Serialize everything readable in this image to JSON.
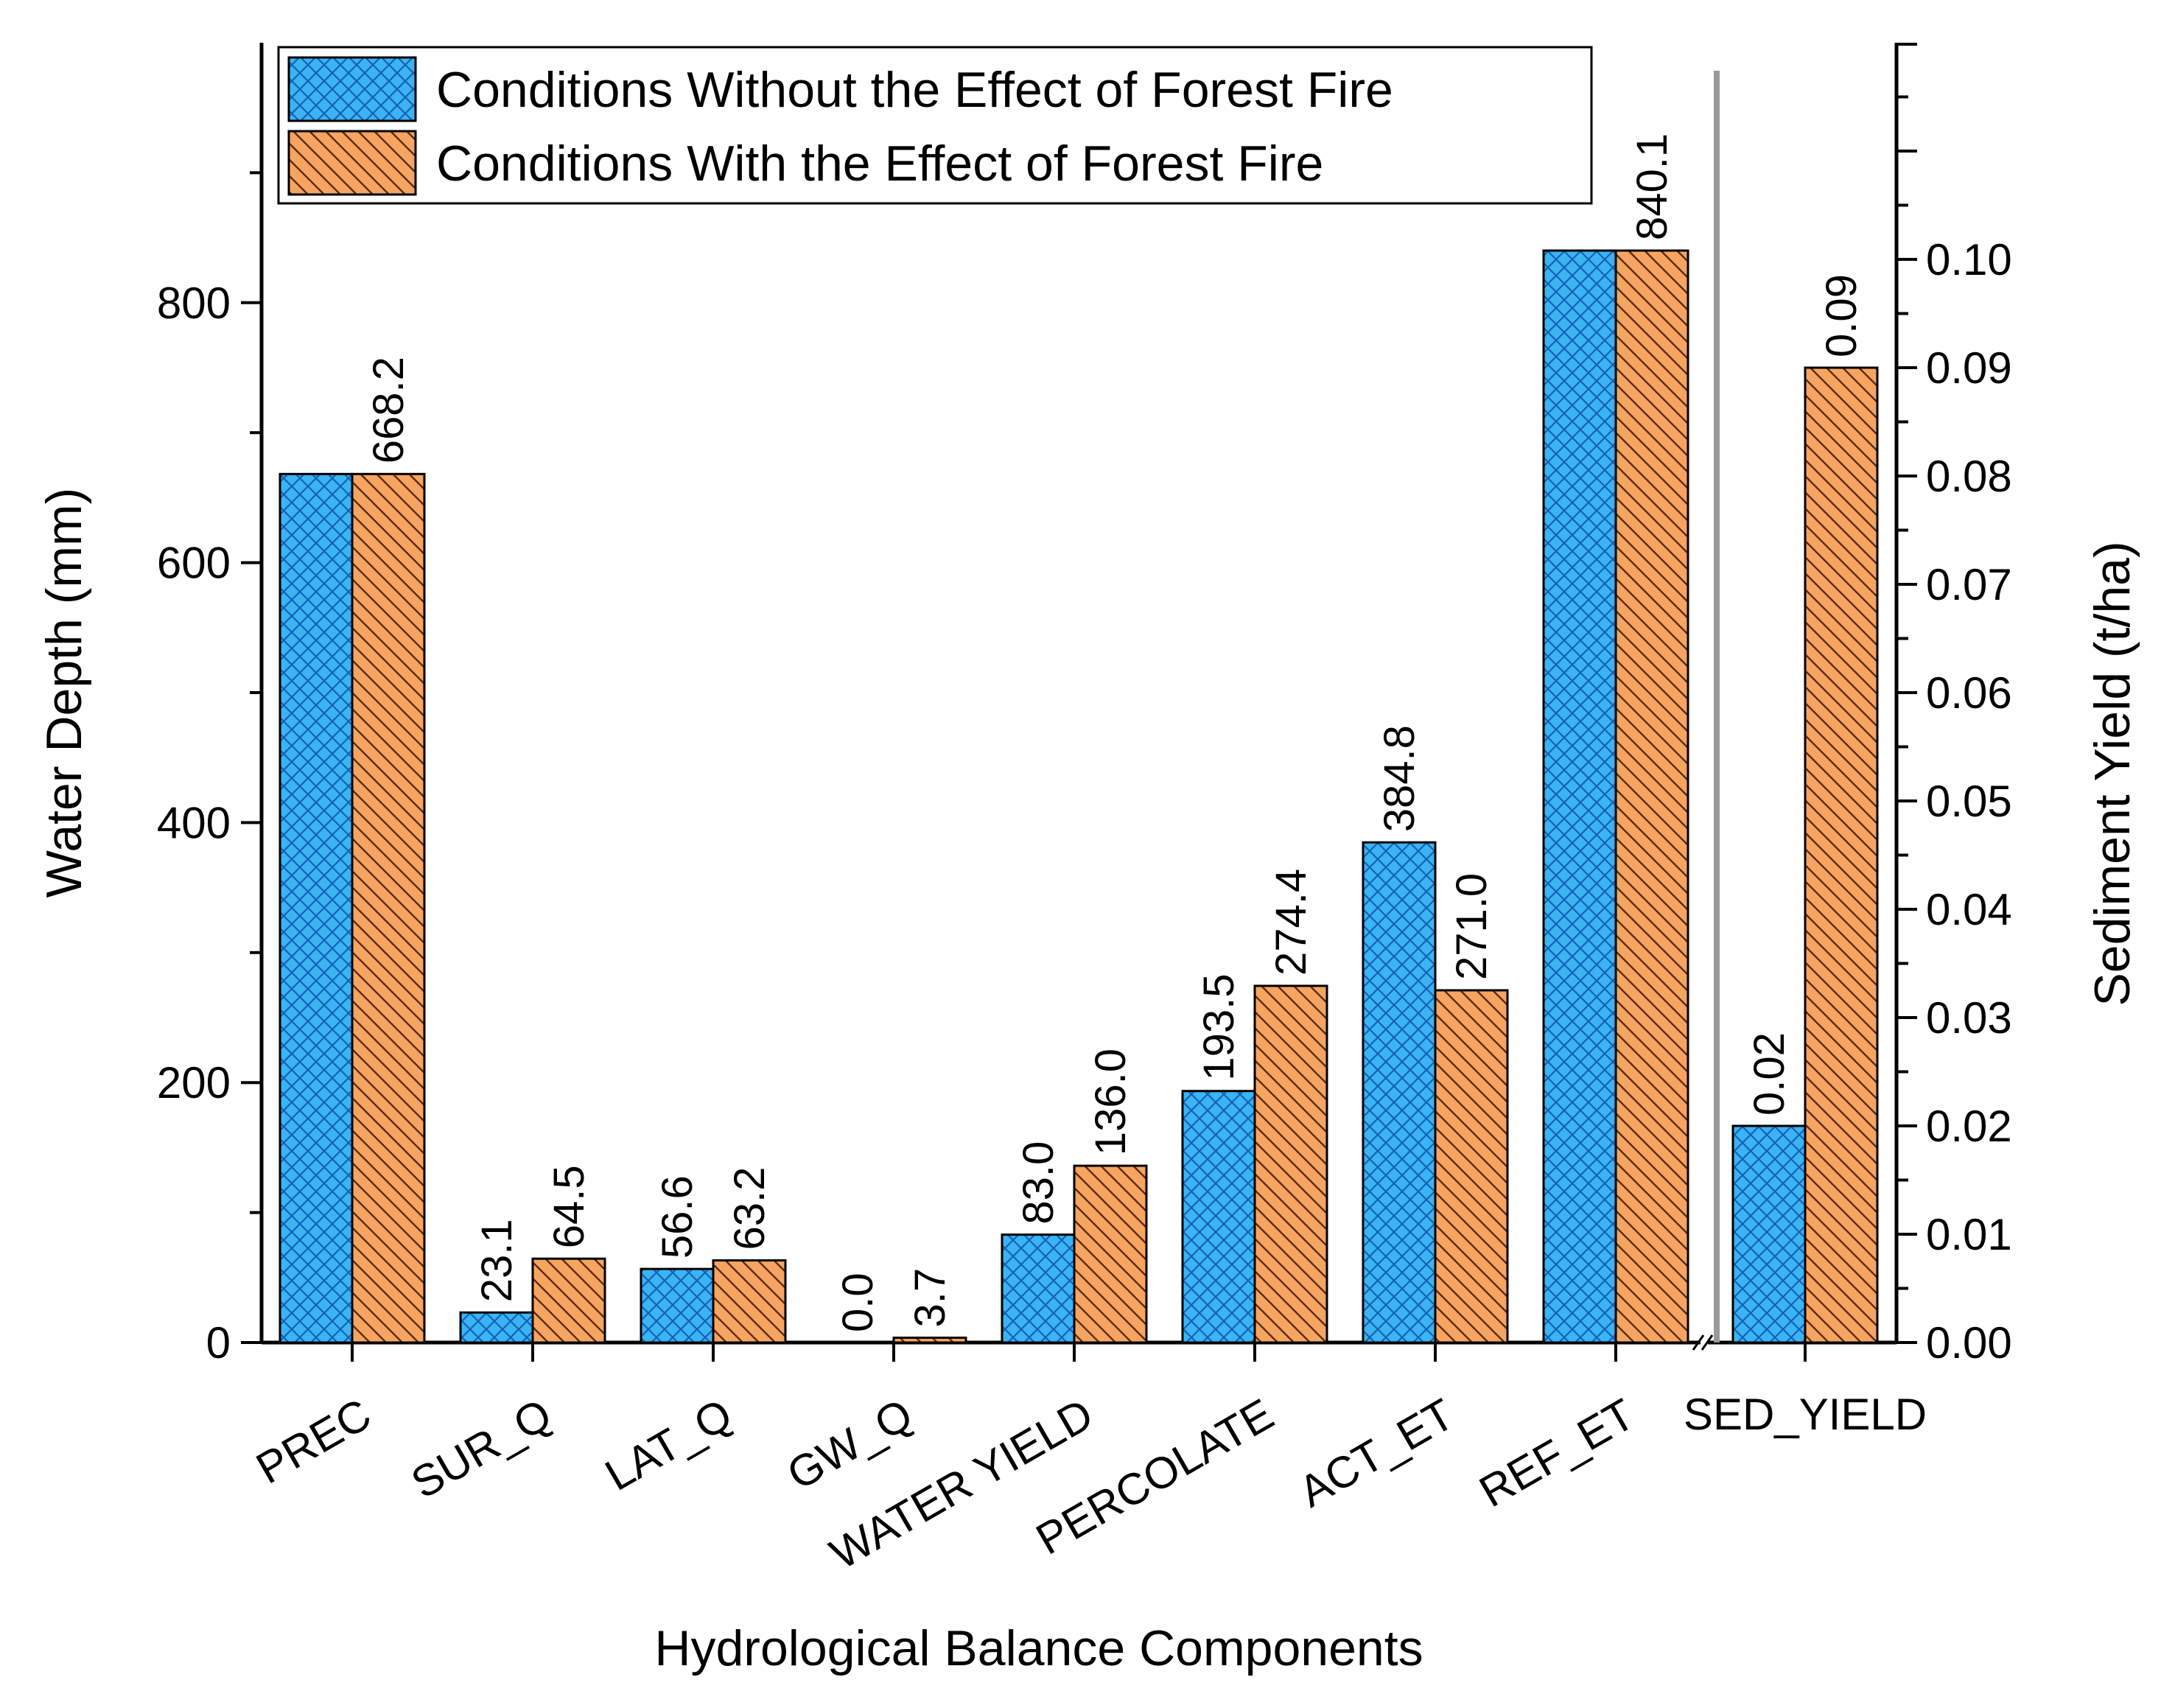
{
  "chart_data": {
    "type": "bar",
    "title": "",
    "xlabel": "Hydrological Balance Components",
    "ylabel": "Water Depth (mm)",
    "y2label": "Sediment Yield (t/ha)",
    "ylim": [
      0,
      1000
    ],
    "y2lim": [
      0,
      0.12
    ],
    "yticks": [
      "0",
      "200",
      "400",
      "600",
      "800"
    ],
    "y2ticks": [
      "0.00",
      "0.01",
      "0.02",
      "0.03",
      "0.04",
      "0.05",
      "0.06",
      "0.07",
      "0.08",
      "0.09",
      "0.10"
    ],
    "grid": false,
    "legend_position": "top-left",
    "categories": [
      "PREC",
      "SUR_Q",
      "LAT_Q",
      "GW_Q",
      "WATER YIELD",
      "PERCOLATE",
      "ACT_ET",
      "REF_ET"
    ],
    "series": [
      {
        "name": "Conditions Without the Effect of Forest Fire",
        "color": "#3ab4f2",
        "values": [
          668.2,
          23.1,
          56.6,
          0.0,
          83.0,
          193.5,
          384.8,
          840.1
        ],
        "labels": [
          "",
          "23.1",
          "56.6",
          "0.0",
          "83.0",
          "193.5",
          "384.8",
          ""
        ]
      },
      {
        "name": "Conditions With the Effect of Forest Fire",
        "color": "#f7a460",
        "values": [
          668.2,
          64.5,
          63.2,
          3.7,
          136.0,
          274.4,
          271.0,
          840.1
        ],
        "labels": [
          "668.2",
          "64.5",
          "63.2",
          "3.7",
          "136.0",
          "274.4",
          "271.0",
          "840.1"
        ]
      }
    ],
    "secondary": {
      "category": "SED_YIELD",
      "axis": "right",
      "values": [
        0.02,
        0.09
      ],
      "labels": [
        "0.02",
        "0.09"
      ]
    }
  }
}
